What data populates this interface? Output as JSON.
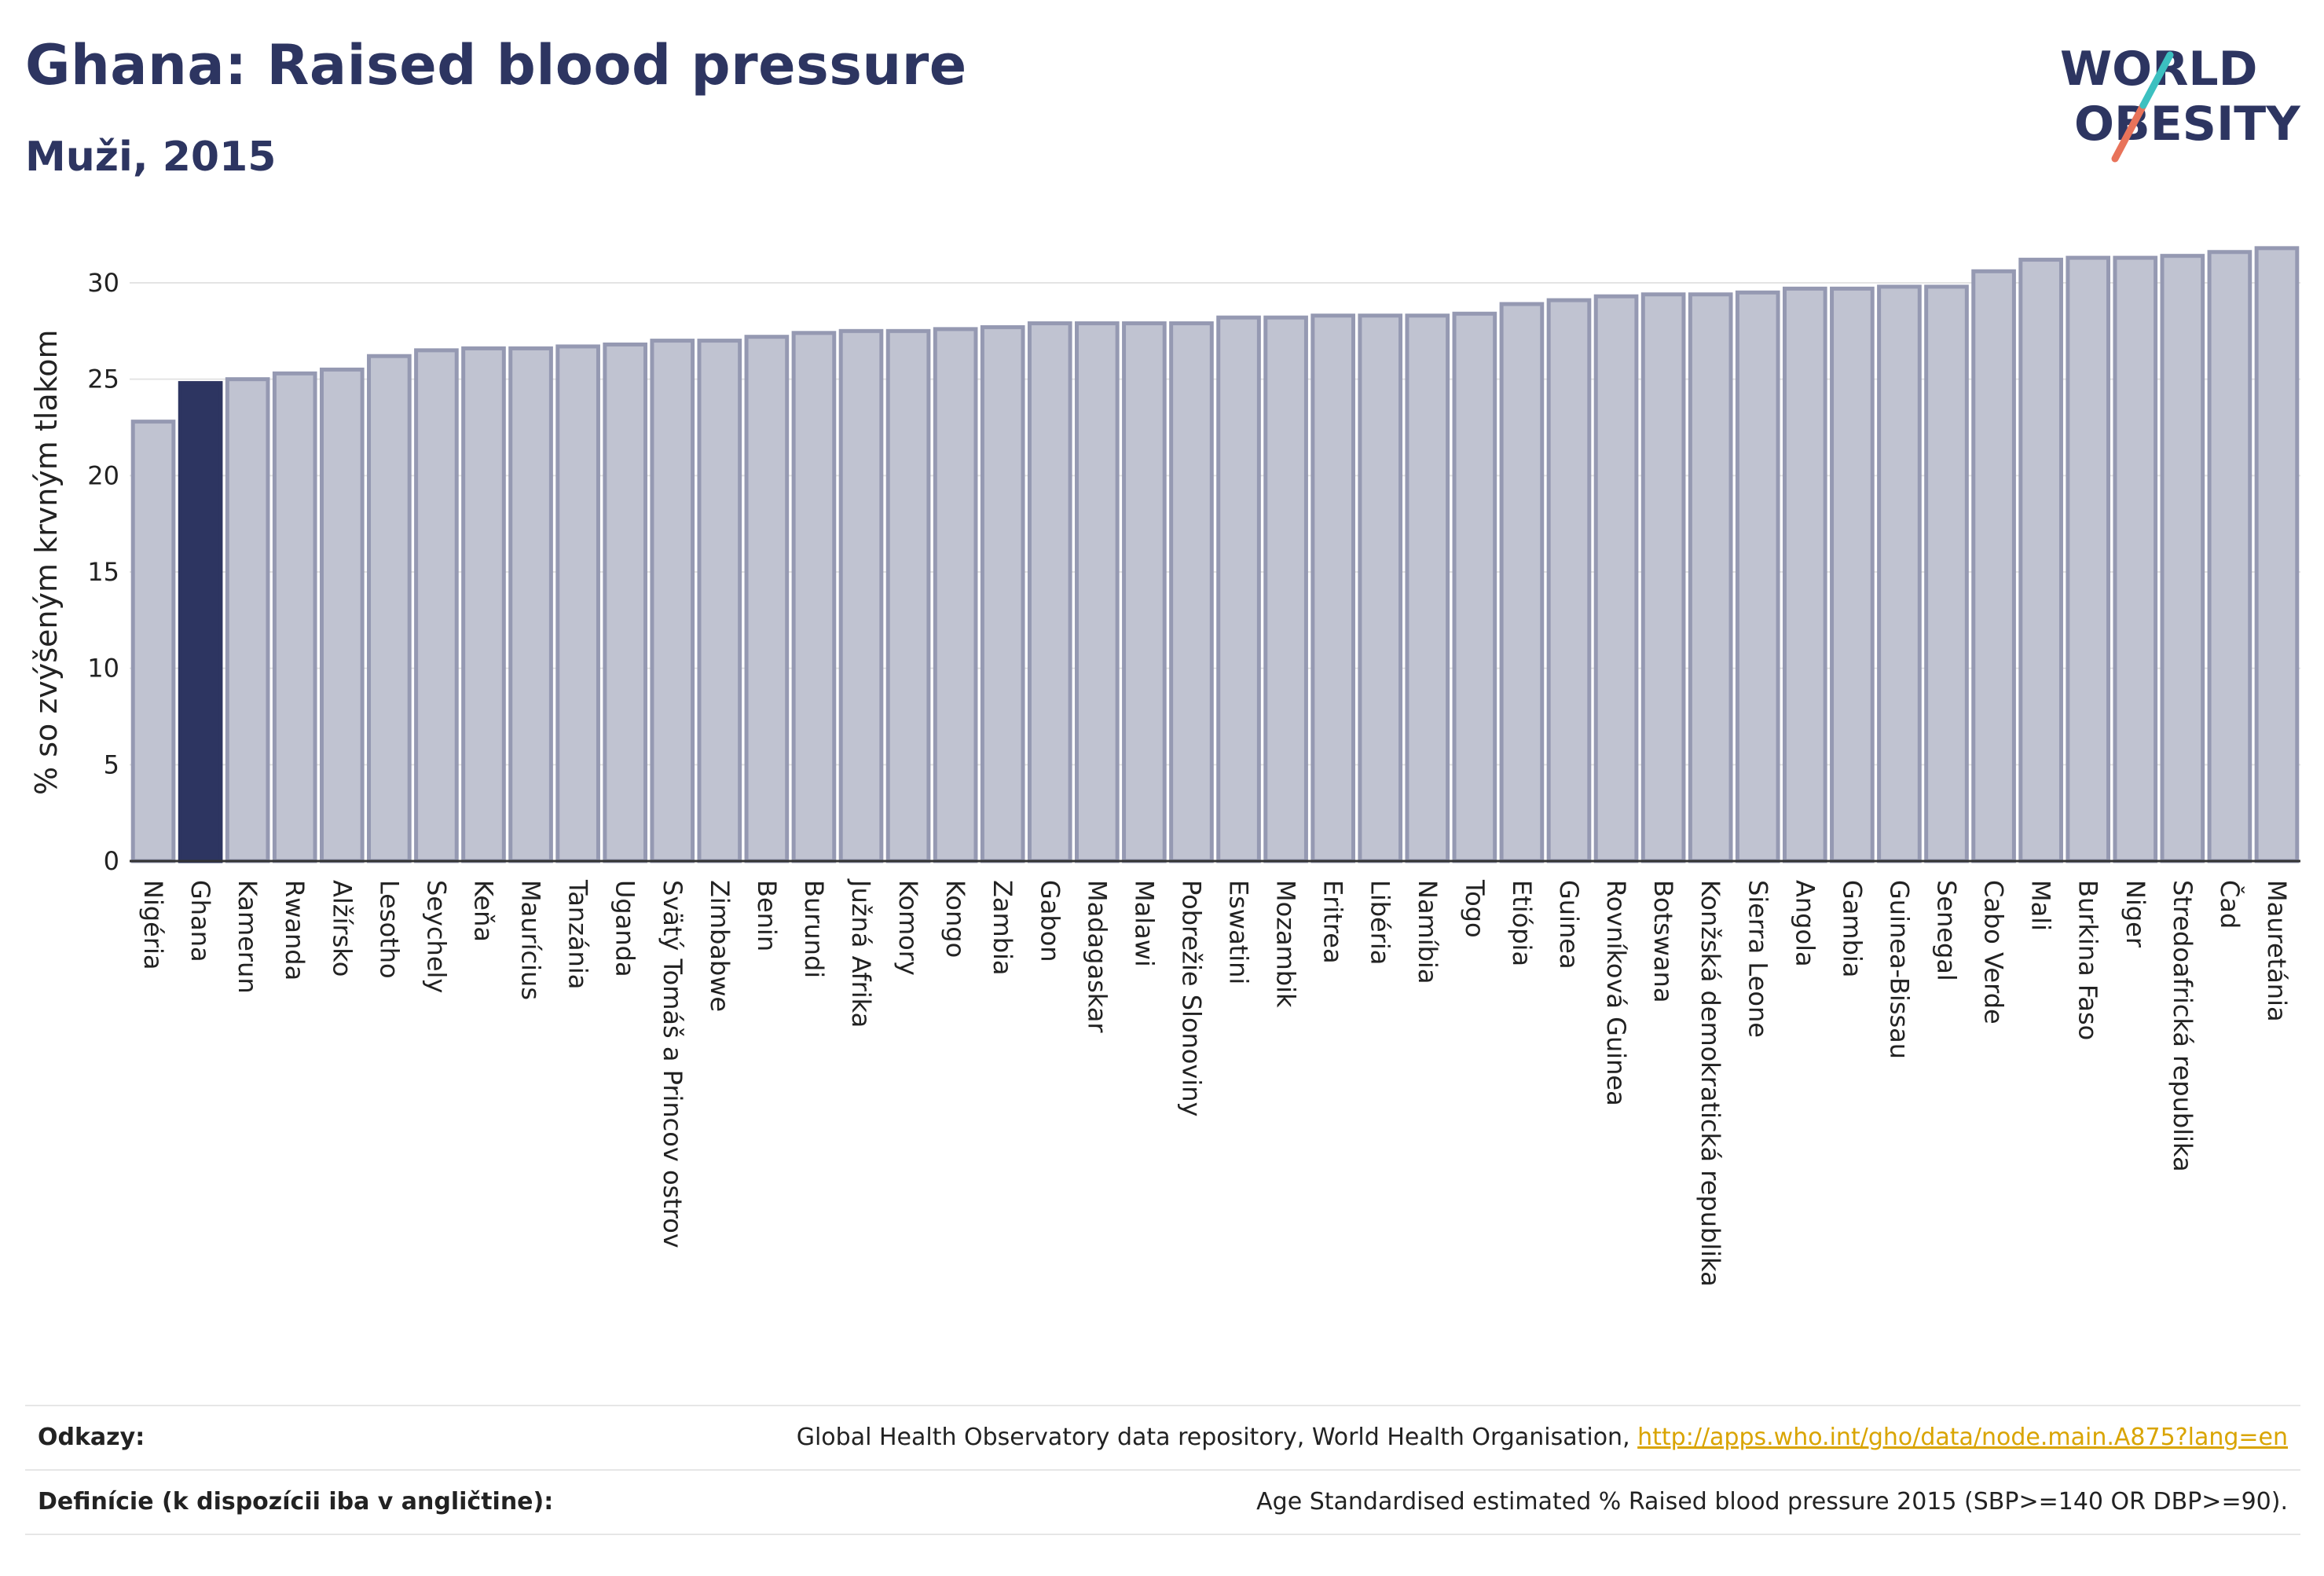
{
  "header": {
    "title": "Ghana: Raised blood pressure",
    "subtitle": "Muži, 2015"
  },
  "logo": {
    "line1": "WORLD",
    "line2": "OBESITY"
  },
  "colors": {
    "highlight": "#2d3561",
    "bar": "#c0c3d1",
    "bar_edge": "#9599b2",
    "title": "#2d3561",
    "link": "#d9a400"
  },
  "chart_data": {
    "type": "bar",
    "ylabel": "% so zvýšeným krvným tlakom",
    "xlabel": "",
    "ylim": [
      0,
      32
    ],
    "yticks": [
      0,
      5,
      10,
      15,
      20,
      25,
      30
    ],
    "grid": true,
    "highlight": "Ghana",
    "categories": [
      "Nigéria",
      "Ghana",
      "Kamerun",
      "Rwanda",
      "Alžírsko",
      "Lesotho",
      "Seychely",
      "Keňa",
      "Maurícius",
      "Tanzánia",
      "Uganda",
      "Svätý Tomáš a Princov ostrov",
      "Zimbabwe",
      "Benin",
      "Burundi",
      "Južná Afrika",
      "Komory",
      "Kongo",
      "Zambia",
      "Gabon",
      "Madagaskar",
      "Malawi",
      "Pobrežie Slonoviny",
      "Eswatini",
      "Mozambik",
      "Eritrea",
      "Libéria",
      "Namíbia",
      "Togo",
      "Etiópia",
      "Guinea",
      "Rovníková Guinea",
      "Botswana",
      "Konžská demokratická republika",
      "Sierra Leone",
      "Angola",
      "Gambia",
      "Guinea-Bissau",
      "Senegal",
      "Cabo Verde",
      "Mali",
      "Burkina Faso",
      "Niger",
      "Stredoafrická republika",
      "Čad",
      "Mauretánia"
    ],
    "values": [
      22.8,
      24.8,
      25.0,
      25.3,
      25.5,
      26.2,
      26.5,
      26.6,
      26.6,
      26.7,
      26.8,
      27.0,
      27.0,
      27.2,
      27.4,
      27.5,
      27.5,
      27.6,
      27.7,
      27.9,
      27.9,
      27.9,
      27.9,
      28.2,
      28.2,
      28.3,
      28.3,
      28.3,
      28.4,
      28.9,
      29.1,
      29.3,
      29.4,
      29.4,
      29.5,
      29.7,
      29.7,
      29.8,
      29.8,
      30.6,
      31.2,
      31.3,
      31.3,
      31.4,
      31.6,
      31.8
    ]
  },
  "footer": {
    "refs_label": "Odkazy:",
    "refs_text": "Global Health Observatory data repository, World Health Organisation, ",
    "refs_link": "http://apps.who.int/gho/data/node.main.A875?lang=en",
    "defs_label": "Definície (k dispozícii iba v angličtine):",
    "defs_text": "Age Standardised estimated % Raised blood pressure 2015 (SBP>=140 OR DBP>=90)."
  }
}
